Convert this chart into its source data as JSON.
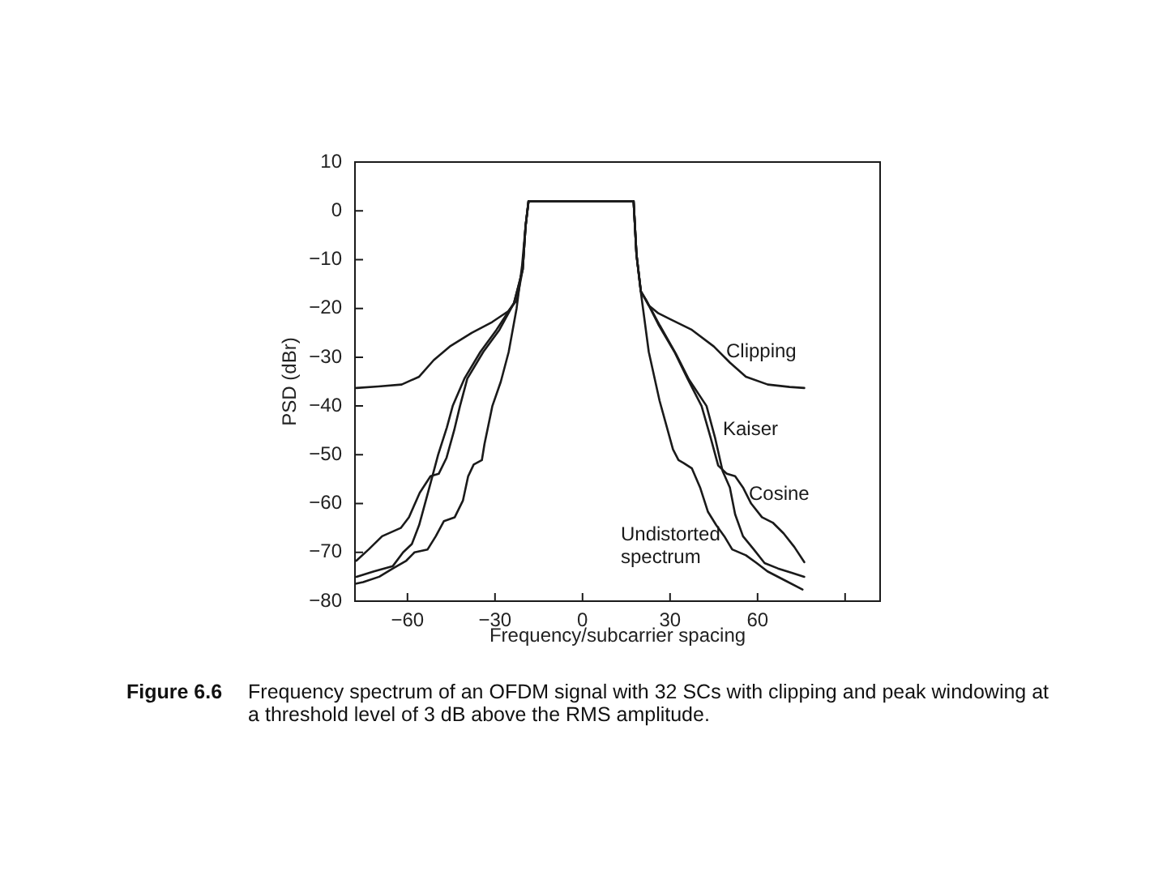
{
  "chart_data": {
    "type": "line",
    "xlabel": "Frequency/subcarrier spacing",
    "ylabel": "PSD (dBr)",
    "annotations": [
      "Figure 6.6",
      "Frequency spectrum of an OFDM signal with 32 SCs with clipping and peak windowing at a threshold level of 3 dB above the RMS amplitude."
    ],
    "xlim": [
      -78,
      102
    ],
    "ylim": [
      -80,
      10
    ],
    "xticks": [
      -60,
      -30,
      0,
      30,
      60,
      {
        "value": 90,
        "label": null
      }
    ],
    "yticks": [
      -80,
      -70,
      -60,
      -50,
      -40,
      -30,
      -20,
      -10,
      0,
      10
    ],
    "legend": false,
    "grid": false,
    "marker": "none",
    "series": [
      {
        "name": "Clipping",
        "color": "#1a1a1a",
        "x": [
          -77.5,
          -70,
          -62,
          -56,
          -51,
          -45.5,
          -38,
          -31,
          -25.5,
          -22.5,
          -20.5,
          -19.5,
          -18.5,
          -10,
          0,
          10,
          17.5,
          18.5,
          20,
          22.7,
          26,
          30,
          37.5,
          45,
          50.5,
          56,
          63.5,
          71,
          76
        ],
        "values": [
          -36.3,
          -36,
          -35.6,
          -34,
          -30.6,
          -27.8,
          -25,
          -22.8,
          -20.6,
          -18.3,
          -12,
          -3,
          2,
          2,
          2,
          2,
          2,
          -9,
          -16.5,
          -19.4,
          -21,
          -22.2,
          -24.4,
          -27.8,
          -31.1,
          -34,
          -35.6,
          -36.1,
          -36.3
        ]
      },
      {
        "name": "Kaiser",
        "color": "#1a1a1a",
        "x": [
          -77.5,
          -71.5,
          -65,
          -61.5,
          -58.5,
          -56,
          -54,
          -52,
          -49.5,
          -46.5,
          -44.5,
          -40.5,
          -35,
          -29.5,
          -23.5,
          -20.5,
          -19.5,
          -18.5,
          -10,
          0,
          10,
          17.5,
          18.5,
          20,
          22,
          26.5,
          32,
          36.5,
          42.5,
          45.5,
          48,
          50.5,
          52.3,
          55,
          58.7,
          62.4,
          67,
          71.7,
          76
        ],
        "values": [
          -75,
          -73.9,
          -72.8,
          -70,
          -68.3,
          -64.4,
          -60,
          -55.6,
          -50,
          -44.4,
          -40,
          -34.4,
          -28.9,
          -24.4,
          -18.9,
          -12,
          -3,
          2,
          2,
          2,
          2,
          2,
          -9,
          -16.5,
          -18.5,
          -23.5,
          -29.3,
          -34.6,
          -40,
          -46.7,
          -53.3,
          -56.7,
          -62.2,
          -66.7,
          -69.4,
          -72.2,
          -73.3,
          -74.2,
          -75
        ]
      },
      {
        "name": "Cosine",
        "color": "#1a1a1a",
        "x": [
          -77.5,
          -73.3,
          -68.7,
          -62.3,
          -59.5,
          -55.8,
          -52.1,
          -49.3,
          -46.6,
          -44,
          -42,
          -39.5,
          -34,
          -28.5,
          -23.5,
          -20.5,
          -19.5,
          -18.5,
          -10,
          0,
          10,
          17.5,
          18.5,
          20,
          21.8,
          26,
          31.5,
          36,
          40.8,
          44,
          46.5,
          49.5,
          52.3,
          55,
          57.8,
          61.5,
          65.2,
          68.9,
          72.6,
          76
        ],
        "values": [
          -71.7,
          -69.4,
          -66.7,
          -65,
          -62.8,
          -57.8,
          -54.4,
          -53.9,
          -50.6,
          -45,
          -40,
          -34.4,
          -28.9,
          -24.4,
          -18.9,
          -12,
          -3,
          2,
          2,
          2,
          2,
          2,
          -9,
          -16.5,
          -18.3,
          -23.3,
          -28.9,
          -34.4,
          -40,
          -46.7,
          -52.2,
          -53.9,
          -54.4,
          -56.7,
          -60,
          -62.8,
          -63.9,
          -66.1,
          -68.9,
          -72
        ]
      },
      {
        "name": "Undistorted spectrum",
        "color": "#1a1a1a",
        "x": [
          -77.5,
          -75.2,
          -69.7,
          -65,
          -60.4,
          -57.6,
          -53.1,
          -50.3,
          -47.5,
          -43.8,
          -41,
          -39.2,
          -37.3,
          -34.5,
          -33.6,
          -30.9,
          -28,
          -25.3,
          -22.6,
          -20.7,
          -19.5,
          -18.5,
          -10,
          0,
          10,
          17.5,
          18.5,
          20,
          22.7,
          26.4,
          31,
          32.9,
          34.7,
          37.5,
          40.3,
          43,
          45.8,
          48.6,
          51.3,
          56,
          59.7,
          63.4,
          68.9,
          75.4
        ],
        "values": [
          -76.4,
          -76.1,
          -75,
          -73.3,
          -71.7,
          -70,
          -69.4,
          -66.7,
          -63.6,
          -62.8,
          -59.4,
          -54.4,
          -52,
          -51.1,
          -47.8,
          -40,
          -35,
          -28.9,
          -20,
          -11.1,
          -3,
          2,
          2,
          2,
          2,
          2,
          -9,
          -16.7,
          -28.9,
          -38.9,
          -48.9,
          -51.1,
          -51.7,
          -52.8,
          -56.7,
          -61.7,
          -64.4,
          -66.7,
          -69.4,
          -70.6,
          -72.2,
          -73.9,
          -75.6,
          -77.6
        ]
      }
    ]
  }
}
